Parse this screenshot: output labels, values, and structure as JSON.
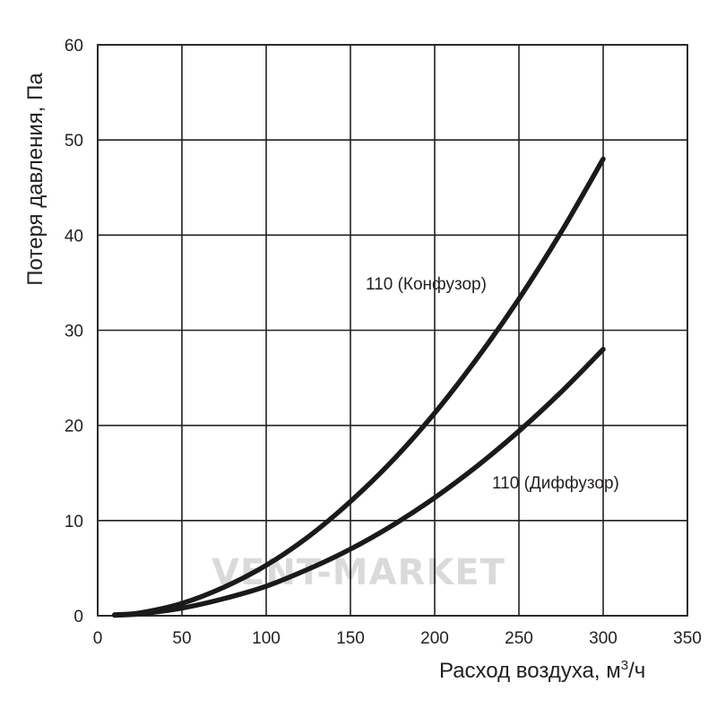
{
  "chart_data": {
    "type": "line",
    "xlabel": "Расход воздуха, м³/ч",
    "ylabel": "Потеря давления, Па",
    "xlim": [
      0,
      350
    ],
    "ylim": [
      0,
      60
    ],
    "x_ticks": [
      0,
      50,
      100,
      150,
      200,
      250,
      300,
      350
    ],
    "y_ticks": [
      0,
      10,
      20,
      30,
      40,
      50,
      60
    ],
    "grid": true,
    "legend": "none",
    "watermark": "VENT-MARKET",
    "series": [
      {
        "name": "110 (Конфузор)",
        "x": [
          10,
          25,
          50,
          75,
          100,
          125,
          150,
          175,
          200,
          225,
          250,
          275,
          300
        ],
        "y": [
          0.1,
          0.3,
          1.3,
          3.0,
          5.3,
          8.3,
          12.0,
          16.3,
          21.3,
          27.0,
          33.3,
          40.3,
          48.0
        ]
      },
      {
        "name": "110 (Диффузор)",
        "x": [
          10,
          25,
          50,
          75,
          100,
          125,
          150,
          175,
          200,
          225,
          250,
          275,
          300
        ],
        "y": [
          0.05,
          0.2,
          0.8,
          1.8,
          3.1,
          4.9,
          7.0,
          9.5,
          12.4,
          15.7,
          19.4,
          23.5,
          28.0
        ]
      }
    ]
  }
}
